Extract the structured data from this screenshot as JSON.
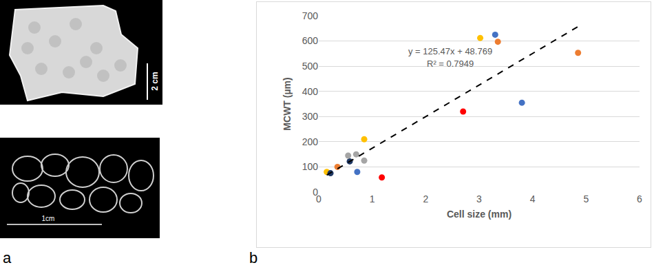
{
  "panel_a": {
    "letter": "a",
    "scale_bar_top": "2 cm",
    "scale_bar_bottom": "1cm"
  },
  "panel_b": {
    "letter": "b"
  },
  "chart_data": {
    "type": "scatter",
    "x_label": "Cell size (mm)",
    "y_label": "MCWT (µm)",
    "xlim": [
      0,
      6
    ],
    "xticks": [
      0,
      1,
      2,
      3,
      4,
      5,
      6
    ],
    "ylim": [
      0,
      700
    ],
    "yticks": [
      0,
      100,
      200,
      300,
      400,
      500,
      600,
      700
    ],
    "grid": true,
    "annotations": [
      "y = 125.47x + 48.769",
      "R² = 0.7949"
    ],
    "series": [
      {
        "color": "#ffc000",
        "marker": "circle",
        "x": [
          0.15,
          0.85,
          3.02
        ],
        "values": [
          80,
          210,
          612
        ]
      },
      {
        "color": "#ed7d31",
        "marker": "circle",
        "x": [
          0.35,
          3.35,
          4.85
        ],
        "values": [
          100,
          597,
          553
        ]
      },
      {
        "color": "#4472c4",
        "marker": "circle",
        "x": [
          0.72,
          3.3,
          3.8
        ],
        "values": [
          80,
          625,
          355
        ]
      },
      {
        "color": "#1f3864",
        "marker": "circle",
        "x": [
          0.22,
          0.58
        ],
        "values": [
          75,
          122
        ]
      },
      {
        "color": "#ff0000",
        "marker": "circle",
        "x": [
          1.18,
          2.7
        ],
        "values": [
          58,
          320
        ]
      },
      {
        "color": "#a5a5a5",
        "marker": "circle",
        "x": [
          0.55,
          0.7,
          0.85
        ],
        "values": [
          145,
          150,
          125
        ]
      },
      {
        "type": "line",
        "line_style": "dash",
        "color": "#000000",
        "x": [
          0.15,
          4.85
        ],
        "values": [
          67.6,
          657.3
        ]
      }
    ]
  }
}
